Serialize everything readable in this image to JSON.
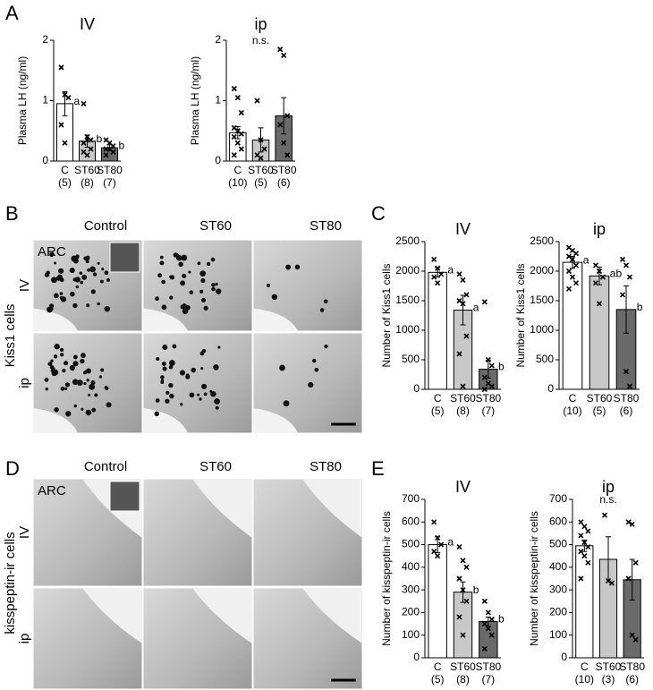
{
  "panels": [
    "A",
    "B",
    "C",
    "D",
    "E"
  ],
  "micrographs": [
    {
      "columns": [
        "Control",
        "ST60",
        "ST80"
      ],
      "rows": [
        "IV",
        "ip"
      ],
      "region": "ARC",
      "label": "Kiss1 cells"
    },
    {
      "columns": [
        "Control",
        "ST60",
        "ST80"
      ],
      "rows": [
        "IV",
        "ip"
      ],
      "region": "ARC",
      "label": "kisspeptin-ir cells"
    }
  ],
  "chart_data": [
    {
      "type": "bar",
      "title": "IV",
      "ylabel": "Plasma LH (ng/ml)",
      "categories": [
        "C",
        "ST60",
        "ST80"
      ],
      "group_sizes": [
        "(5)",
        "(8)",
        "(7)"
      ],
      "values": [
        0.95,
        0.33,
        0.22
      ],
      "errors": [
        0.2,
        0.1,
        0.05
      ],
      "colors": [
        "#ffffff",
        "#c8c8c8",
        "#6a6a6a"
      ],
      "letters": [
        "a",
        "b",
        "b"
      ],
      "points": [
        [
          1.55,
          1.1,
          1.05,
          0.6,
          0.3
        ],
        [
          0.95,
          0.4,
          0.35,
          0.3,
          0.35,
          0.2,
          0.15,
          0.1
        ],
        [
          0.35,
          0.3,
          0.25,
          0.2,
          0.2,
          0.15,
          0.1
        ]
      ],
      "ylim": [
        0,
        2
      ],
      "yticks": [
        0,
        1,
        2
      ]
    },
    {
      "type": "bar",
      "title": "ip",
      "ylabel": "Plasma LH (ng/ml)",
      "categories": [
        "C",
        "ST60",
        "ST80"
      ],
      "group_sizes": [
        "(10)",
        "(5)",
        "(6)"
      ],
      "values": [
        0.47,
        0.35,
        0.75
      ],
      "errors": [
        0.1,
        0.2,
        0.3
      ],
      "colors": [
        "#ffffff",
        "#c8c8c8",
        "#6a6a6a"
      ],
      "annotation": "n.s.",
      "points": [
        [
          1.2,
          1.05,
          0.8,
          0.55,
          0.5,
          0.45,
          0.4,
          0.3,
          0.2,
          0.1
        ],
        [
          1.0,
          0.35,
          0.2,
          0.1,
          0.05
        ],
        [
          1.85,
          1.75,
          0.75,
          0.6,
          0.3,
          0.1
        ]
      ],
      "ylim": [
        0,
        2
      ],
      "yticks": [
        0,
        1,
        2
      ]
    },
    {
      "type": "bar",
      "title": "IV",
      "ylabel": "Number of Kiss1 cells",
      "categories": [
        "C",
        "ST60",
        "ST80"
      ],
      "group_sizes": [
        "(5)",
        "(8)",
        "(7)"
      ],
      "values": [
        1980,
        1340,
        340
      ],
      "errors": [
        80,
        250,
        150
      ],
      "colors": [
        "#ffffff",
        "#c8c8c8",
        "#6a6a6a"
      ],
      "letters": [
        "a",
        "a",
        "b"
      ],
      "points": [
        [
          2200,
          2050,
          1950,
          1900,
          1800
        ],
        [
          1950,
          1850,
          1600,
          1500,
          1450,
          900,
          600,
          50
        ],
        [
          1480,
          500,
          400,
          200,
          100,
          50,
          0
        ]
      ],
      "ylim": [
        0,
        2500
      ],
      "yticks": [
        0,
        500,
        1000,
        1500,
        2000,
        2500
      ]
    },
    {
      "type": "bar",
      "title": "ip",
      "ylabel": "Number of Kiss1 cells",
      "categories": [
        "C",
        "ST60",
        "ST80"
      ],
      "group_sizes": [
        "(10)",
        "(5)",
        "(6)"
      ],
      "values": [
        2150,
        1920,
        1350
      ],
      "errors": [
        100,
        150,
        400
      ],
      "colors": [
        "#ffffff",
        "#c8c8c8",
        "#6a6a6a"
      ],
      "letters": [
        "a",
        "ab",
        "b"
      ],
      "points": [
        [
          2400,
          2350,
          2300,
          2250,
          2200,
          2100,
          2000,
          1900,
          1800,
          1700
        ],
        [
          2100,
          2000,
          1900,
          1800,
          1450
        ],
        [
          2200,
          2100,
          1900,
          1600,
          300,
          50
        ]
      ],
      "ylim": [
        0,
        2500
      ],
      "yticks": [
        0,
        500,
        1000,
        1500,
        2000,
        2500
      ]
    },
    {
      "type": "bar",
      "title": "IV",
      "ylabel": "Number of kisspeptin-ir cells",
      "categories": [
        "C",
        "ST60",
        "ST80"
      ],
      "group_sizes": [
        "(5)",
        "(8)",
        "(7)"
      ],
      "values": [
        500,
        290,
        160
      ],
      "errors": [
        35,
        45,
        20
      ],
      "colors": [
        "#ffffff",
        "#c8c8c8",
        "#6a6a6a"
      ],
      "letters": [
        "a",
        "b",
        "b"
      ],
      "points": [
        [
          600,
          530,
          500,
          470,
          450
        ],
        [
          490,
          430,
          400,
          350,
          300,
          250,
          180,
          100
        ],
        [
          250,
          200,
          170,
          150,
          130,
          100,
          40
        ]
      ],
      "ylim": [
        0,
        700
      ],
      "yticks": [
        0,
        100,
        200,
        300,
        400,
        500,
        600,
        700
      ]
    },
    {
      "type": "bar",
      "title": "ip",
      "ylabel": "Number of kisspeptin-ir cells",
      "categories": [
        "C",
        "ST60",
        "ST80"
      ],
      "group_sizes": [
        "(10)",
        "(3)",
        "(6)"
      ],
      "values": [
        495,
        435,
        345
      ],
      "errors": [
        25,
        100,
        90
      ],
      "colors": [
        "#ffffff",
        "#c8c8c8",
        "#6a6a6a"
      ],
      "annotation": "n.s.",
      "points": [
        [
          600,
          580,
          560,
          540,
          510,
          490,
          470,
          450,
          420,
          350
        ],
        [
          630,
          340,
          330
        ],
        [
          600,
          590,
          420,
          350,
          100,
          80
        ]
      ],
      "ylim": [
        0,
        700
      ],
      "yticks": [
        0,
        100,
        200,
        300,
        400,
        500,
        600,
        700
      ]
    }
  ]
}
